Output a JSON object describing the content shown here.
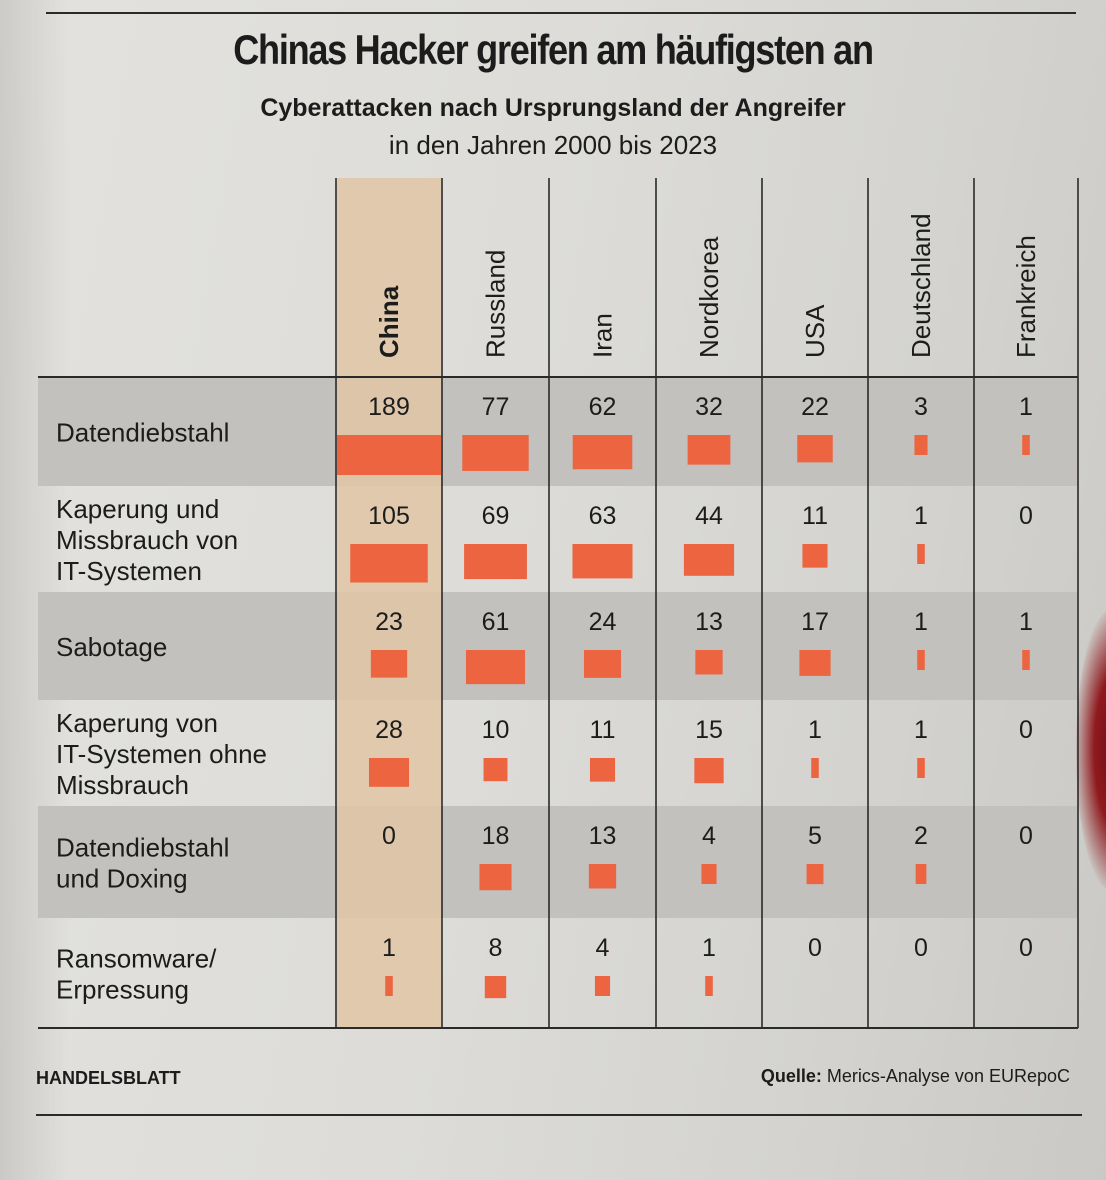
{
  "header": {
    "title": "Chinas Hacker greifen am häufigsten an",
    "subtitle": "Cyberattacken nach Ursprungsland der Angreifer",
    "subtitle2": "in den Jahren 2000 bis 2023"
  },
  "footer": {
    "publisher": "HANDELSBLATT",
    "source_label": "Quelle:",
    "source_text": "Merics-Analyse von EURepoC"
  },
  "colors": {
    "bar": "#ec6440",
    "highlight_column": "#e0c6a5",
    "shaded_row": "#c2c1bd"
  },
  "chart_data": {
    "type": "table",
    "title": "Chinas Hacker greifen am häufigsten an",
    "subtitle": "Cyberattacken nach Ursprungsland der Angreifer in den Jahren 2000 bis 2023",
    "columns": [
      "China",
      "Russland",
      "Iran",
      "Nordkorea",
      "USA",
      "Deutschland",
      "Frankreich"
    ],
    "highlight_column": "China",
    "rows": [
      {
        "label": [
          "Datendiebstahl"
        ],
        "values": [
          189,
          77,
          62,
          32,
          22,
          3,
          1
        ]
      },
      {
        "label": [
          "Kaperung und",
          "Missbrauch von",
          "IT-Systemen"
        ],
        "values": [
          105,
          69,
          63,
          44,
          11,
          1,
          0
        ]
      },
      {
        "label": [
          "Sabotage"
        ],
        "values": [
          23,
          61,
          24,
          13,
          17,
          1,
          1
        ]
      },
      {
        "label": [
          "Kaperung von",
          "IT-Systemen ohne",
          "Missbrauch"
        ],
        "values": [
          28,
          10,
          11,
          15,
          1,
          1,
          0
        ]
      },
      {
        "label": [
          "Datendiebstahl",
          "und Doxing"
        ],
        "values": [
          0,
          18,
          13,
          4,
          5,
          2,
          0
        ]
      },
      {
        "label": [
          "Ransomware/",
          "Erpressung"
        ],
        "values": [
          1,
          8,
          4,
          1,
          0,
          0,
          0
        ]
      }
    ],
    "shaded_rows": [
      0,
      2,
      4
    ],
    "bar_encoding": "area"
  }
}
